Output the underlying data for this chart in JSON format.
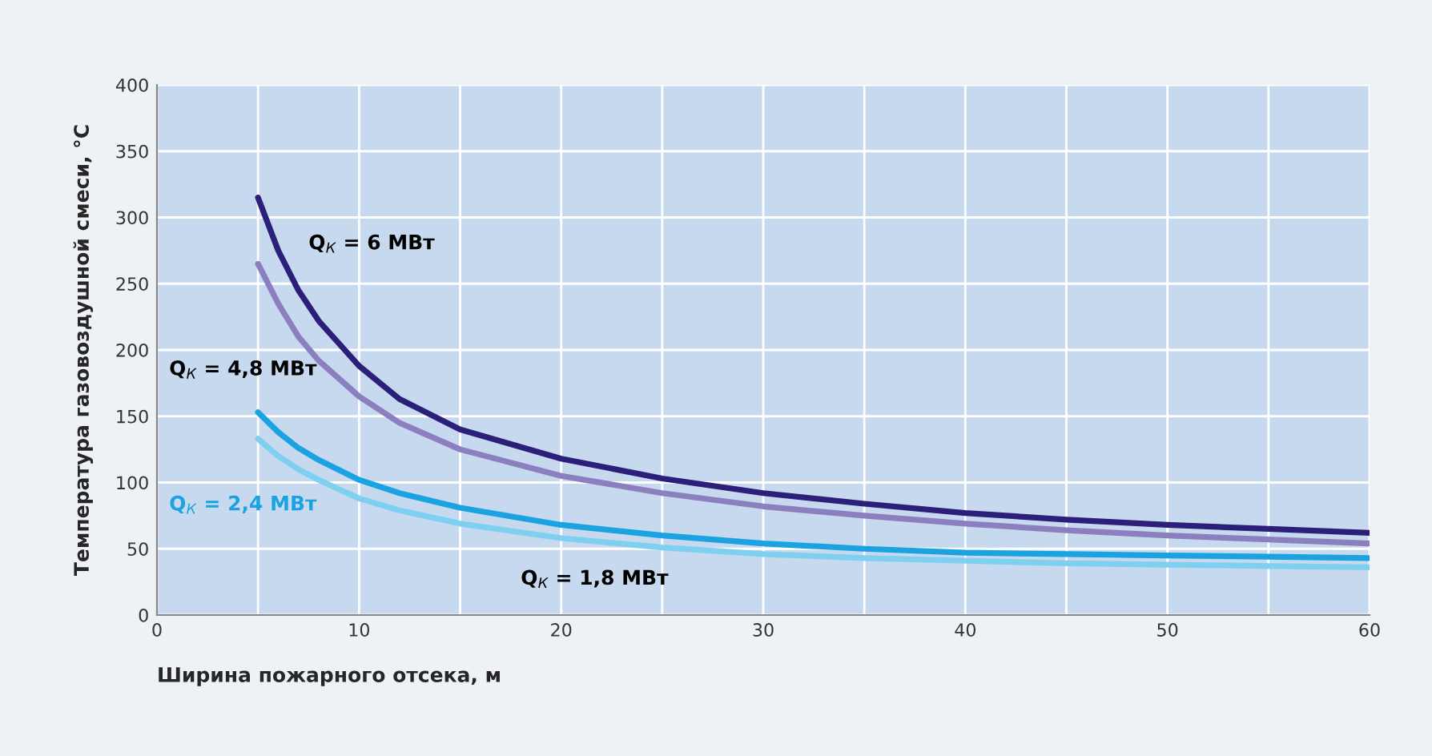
{
  "chart_data": {
    "type": "line",
    "xlabel": "Ширина пожарного отсека, м",
    "ylabel": "Температура газовоздушной смеси, °С",
    "x": [
      5,
      6,
      7,
      8,
      10,
      12,
      15,
      20,
      25,
      30,
      35,
      40,
      45,
      50,
      55,
      60
    ],
    "series": [
      {
        "name": "Q$_{К}$ = 6 МВт",
        "color": "#2b1f7a",
        "values": [
          315,
          275,
          245,
          222,
          188,
          163,
          140,
          118,
          103,
          92,
          84,
          77,
          72,
          68,
          65,
          62
        ]
      },
      {
        "name": "Q$_{К}$ = 4,8 МВт",
        "color": "#8c7fbf",
        "values": [
          265,
          235,
          210,
          192,
          165,
          145,
          125,
          105,
          92,
          82,
          75,
          69,
          64,
          60,
          57,
          54
        ]
      },
      {
        "name": "Q$_{К}$ = 2,4 МВт",
        "color": "#1aa3e0",
        "values": [
          153,
          138,
          126,
          117,
          102,
          92,
          81,
          68,
          60,
          54,
          50,
          47,
          46,
          45,
          44,
          43
        ]
      },
      {
        "name": "Q$_{К}$ = 1,8 МВт",
        "color": "#7fd0f0",
        "values": [
          133,
          120,
          110,
          102,
          88,
          79,
          69,
          58,
          51,
          46,
          43,
          41,
          39,
          38,
          37,
          36
        ]
      }
    ],
    "xlim": [
      0,
      60
    ],
    "ylim": [
      0,
      400
    ],
    "xticks": [
      0,
      {
        "value": 5,
        "label": null
      },
      10,
      {
        "value": 15,
        "label": null
      },
      20,
      {
        "value": 25,
        "label": null
      },
      30,
      {
        "value": 35,
        "label": null
      },
      40,
      {
        "value": 45,
        "label": null
      },
      50,
      {
        "value": 55,
        "label": null
      },
      60
    ],
    "yticks": [
      0,
      50,
      100,
      150,
      200,
      250,
      300,
      350,
      400
    ],
    "grid": true,
    "legend": false,
    "marker": "none",
    "line_style": "solid"
  }
}
